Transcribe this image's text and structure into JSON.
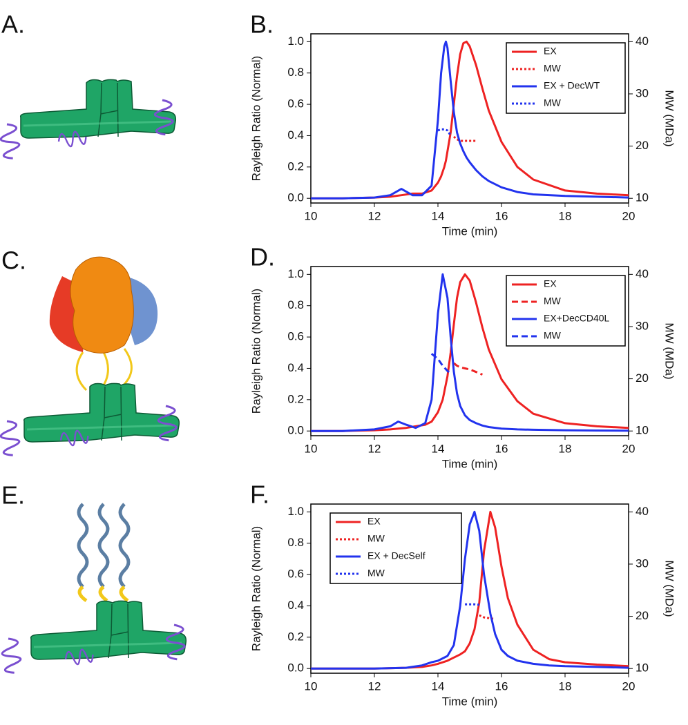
{
  "panels": [
    {
      "label": "A."
    },
    {
      "label": "C."
    },
    {
      "label": "E."
    }
  ],
  "chart_data": [
    {
      "type": "line",
      "panel_label": "B.",
      "x_label": "Time (min)",
      "y_label": "Rayleigh Ratio (Normal)",
      "y2_label": "MW (MDa)",
      "x": [
        10,
        11,
        12,
        12.5,
        12.85,
        13.2,
        13.5,
        13.8,
        14,
        14.1,
        14.2,
        14.25,
        14.3,
        14.4,
        14.5,
        14.6,
        14.7,
        14.8,
        14.9,
        15,
        15.2,
        15.4,
        15.6,
        16,
        16.5,
        17,
        18,
        19,
        20
      ],
      "series": [
        {
          "name": "EX",
          "color": "#ee2222",
          "dash": "solid",
          "values": [
            0,
            0,
            0.005,
            0.01,
            0.02,
            0.03,
            0.03,
            0.05,
            0.1,
            0.14,
            0.2,
            0.24,
            0.3,
            0.42,
            0.6,
            0.78,
            0.92,
            0.99,
            1.0,
            0.97,
            0.85,
            0.7,
            0.56,
            0.36,
            0.2,
            0.12,
            0.05,
            0.03,
            0.02
          ]
        },
        {
          "name": "MW",
          "color": "#ee2222",
          "dash": "dotted",
          "axis": "y2",
          "values": [
            null,
            null,
            null,
            null,
            null,
            null,
            null,
            null,
            null,
            null,
            null,
            null,
            null,
            null,
            21.8,
            21.3,
            21,
            21,
            21,
            21,
            21,
            null,
            null,
            null,
            null,
            null,
            null,
            null,
            null
          ]
        },
        {
          "name": "EX + DecWT",
          "color": "#2233ee",
          "dash": "solid",
          "values": [
            0,
            0,
            0.005,
            0.02,
            0.06,
            0.02,
            0.02,
            0.08,
            0.5,
            0.8,
            0.97,
            1.0,
            0.96,
            0.75,
            0.55,
            0.42,
            0.35,
            0.3,
            0.26,
            0.23,
            0.18,
            0.14,
            0.11,
            0.07,
            0.04,
            0.025,
            0.015,
            0.01,
            0.005
          ]
        },
        {
          "name": "MW",
          "color": "#2233ee",
          "dash": "dotted",
          "axis": "y2",
          "values": [
            null,
            null,
            null,
            null,
            null,
            null,
            null,
            null,
            23,
            23.2,
            23.2,
            23.1,
            23,
            22,
            null,
            null,
            null,
            null,
            null,
            null,
            null,
            null,
            null,
            null,
            null,
            null,
            null,
            null,
            null
          ]
        }
      ],
      "xlim": [
        10,
        20
      ],
      "xticks": [
        10,
        12,
        14,
        16,
        18,
        20
      ],
      "ylim": [
        -0.03,
        1.05
      ],
      "yticks": [
        {
          "value": 0,
          "label": "0.0"
        },
        {
          "value": 0.2,
          "label": "0.2"
        },
        {
          "value": 0.4,
          "label": "0.4"
        },
        {
          "value": 0.6,
          "label": "0.6"
        },
        {
          "value": 0.8,
          "label": "0.8"
        },
        {
          "value": 1,
          "label": "1.0"
        }
      ],
      "y2lim": [
        9.1,
        41.5
      ],
      "y2ticks": [
        10,
        20,
        30,
        40
      ],
      "legend": "top-right"
    },
    {
      "type": "line",
      "panel_label": "D.",
      "x_label": "Time (min)",
      "y_label": "Rayleigh Ratio (Normal)",
      "y2_label": "MW (MDa)",
      "x": [
        10,
        11,
        12,
        12.5,
        12.75,
        13,
        13.3,
        13.6,
        13.8,
        14,
        14.15,
        14.3,
        14.4,
        14.5,
        14.6,
        14.7,
        14.85,
        15,
        15.2,
        15.4,
        15.6,
        16,
        16.5,
        17,
        18,
        19,
        20
      ],
      "series": [
        {
          "name": "EX",
          "color": "#ee2222",
          "dash": "solid",
          "values": [
            0,
            0,
            0.005,
            0.01,
            0.015,
            0.02,
            0.03,
            0.04,
            0.06,
            0.12,
            0.2,
            0.35,
            0.5,
            0.68,
            0.85,
            0.95,
            1.0,
            0.96,
            0.82,
            0.66,
            0.52,
            0.33,
            0.19,
            0.11,
            0.05,
            0.03,
            0.02
          ]
        },
        {
          "name": "MW",
          "color": "#ee2222",
          "dash": "dashed",
          "axis": "y2",
          "values": [
            null,
            null,
            null,
            null,
            null,
            null,
            null,
            null,
            null,
            null,
            null,
            null,
            null,
            23,
            22.5,
            22.2,
            22,
            21.8,
            21.3,
            20.8,
            null,
            null,
            null,
            null,
            null,
            null,
            null
          ]
        },
        {
          "name": "EX+DecCD40L",
          "color": "#2233ee",
          "dash": "solid",
          "values": [
            0,
            0,
            0.01,
            0.03,
            0.06,
            0.04,
            0.02,
            0.05,
            0.2,
            0.75,
            1.0,
            0.85,
            0.6,
            0.38,
            0.24,
            0.16,
            0.1,
            0.07,
            0.05,
            0.035,
            0.025,
            0.015,
            0.01,
            0.008,
            0.005,
            0.003,
            0.002
          ]
        },
        {
          "name": "MW",
          "color": "#2233ee",
          "dash": "dashed",
          "axis": "y2",
          "values": [
            null,
            null,
            null,
            null,
            null,
            null,
            null,
            null,
            24.8,
            23.8,
            22.5,
            21.5,
            21,
            null,
            null,
            null,
            null,
            null,
            null,
            null,
            null,
            null,
            null,
            null,
            null,
            null,
            null
          ]
        }
      ],
      "xlim": [
        10,
        20
      ],
      "xticks": [
        10,
        12,
        14,
        16,
        18,
        20
      ],
      "ylim": [
        -0.03,
        1.05
      ],
      "yticks": [
        {
          "value": 0,
          "label": "0.0"
        },
        {
          "value": 0.2,
          "label": "0.2"
        },
        {
          "value": 0.4,
          "label": "0.4"
        },
        {
          "value": 0.6,
          "label": "0.6"
        },
        {
          "value": 0.8,
          "label": "0.8"
        },
        {
          "value": 1,
          "label": "1.0"
        }
      ],
      "y2lim": [
        9.1,
        41.5
      ],
      "y2ticks": [
        10,
        20,
        30,
        40
      ],
      "legend": "top-right"
    },
    {
      "type": "line",
      "panel_label": "F.",
      "x_label": "Time (min)",
      "y_label": "Rayleigh Ratio (Normal)",
      "y2_label": "MW (MDa)",
      "x": [
        10,
        11,
        12,
        13,
        13.5,
        13.8,
        14,
        14.3,
        14.5,
        14.7,
        14.85,
        15,
        15.15,
        15.3,
        15.45,
        15.65,
        15.8,
        16,
        16.2,
        16.5,
        17,
        17.5,
        18,
        19,
        20
      ],
      "series": [
        {
          "name": "EX",
          "color": "#ee2222",
          "dash": "solid",
          "values": [
            0,
            0,
            0,
            0.005,
            0.01,
            0.02,
            0.03,
            0.05,
            0.07,
            0.09,
            0.11,
            0.16,
            0.25,
            0.42,
            0.75,
            1.0,
            0.9,
            0.65,
            0.45,
            0.28,
            0.12,
            0.06,
            0.04,
            0.025,
            0.015
          ]
        },
        {
          "name": "MW",
          "color": "#ee2222",
          "dash": "dotted",
          "axis": "y2",
          "values": [
            null,
            null,
            null,
            null,
            null,
            null,
            null,
            null,
            null,
            null,
            null,
            null,
            null,
            20.2,
            19.8,
            19.6,
            19.5,
            null,
            null,
            null,
            null,
            null,
            null,
            null,
            null
          ]
        },
        {
          "name": "EX + DecSelf",
          "color": "#2233ee",
          "dash": "solid",
          "values": [
            0,
            0,
            0,
            0.005,
            0.02,
            0.04,
            0.05,
            0.08,
            0.15,
            0.4,
            0.7,
            0.92,
            1.0,
            0.88,
            0.6,
            0.35,
            0.22,
            0.12,
            0.08,
            0.05,
            0.03,
            0.02,
            0.015,
            0.01,
            0.005
          ]
        },
        {
          "name": "MW",
          "color": "#2233ee",
          "dash": "dotted",
          "axis": "y2",
          "values": [
            null,
            null,
            null,
            null,
            null,
            null,
            null,
            null,
            null,
            null,
            22.3,
            22.3,
            22.3,
            22.2,
            null,
            null,
            null,
            null,
            null,
            null,
            null,
            null,
            null,
            null,
            null
          ]
        }
      ],
      "xlim": [
        10,
        20
      ],
      "xticks": [
        10,
        12,
        14,
        16,
        18,
        20
      ],
      "ylim": [
        -0.03,
        1.05
      ],
      "yticks": [
        {
          "value": 0,
          "label": "0.0"
        },
        {
          "value": 0.2,
          "label": "0.2"
        },
        {
          "value": 0.4,
          "label": "0.4"
        },
        {
          "value": 0.6,
          "label": "0.6"
        },
        {
          "value": 0.8,
          "label": "0.8"
        },
        {
          "value": 1,
          "label": "1.0"
        }
      ],
      "y2lim": [
        9.1,
        41.5
      ],
      "y2ticks": [
        10,
        20,
        30,
        40
      ],
      "legend": "top-left"
    }
  ]
}
